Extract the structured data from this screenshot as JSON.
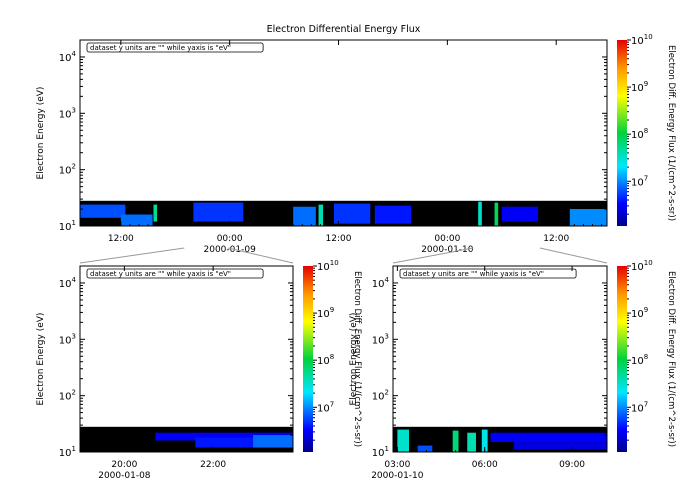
{
  "chart_data": [
    {
      "id": "top",
      "type": "heatmap",
      "title": "Electron Differential Energy Flux",
      "annotation": "dataset y units are \"\" while yaxis is \"eV\"",
      "ylabel": "Electron Energy (eV)",
      "y_scale": "log",
      "ylim": [
        10,
        20000
      ],
      "y_ticks": [
        {
          "value": 10,
          "base": "10",
          "exp": "1"
        },
        {
          "value": 100,
          "base": "10",
          "exp": "2"
        },
        {
          "value": 1000,
          "base": "10",
          "exp": "3"
        },
        {
          "value": 10000,
          "base": "10",
          "exp": "4"
        }
      ],
      "x_unit": "hours since 2000-01-08 00:00",
      "xlim": [
        7.5,
        65.6
      ],
      "x_ticks": [
        {
          "value": 12,
          "label": "12:00",
          "date": ""
        },
        {
          "value": 24,
          "label": "00:00",
          "date": "2000-01-09"
        },
        {
          "value": 36,
          "label": "12:00",
          "date": ""
        },
        {
          "value": 48,
          "label": "00:00",
          "date": "2000-01-10"
        },
        {
          "value": 60,
          "label": "12:00",
          "date": ""
        }
      ],
      "data_band_top_eV": 28,
      "flux_patches": [
        {
          "t": [
            7.5,
            12.5
          ],
          "e": [
            14,
            24
          ],
          "level": 6.8
        },
        {
          "t": [
            12.0,
            15.5
          ],
          "e": [
            10,
            16
          ],
          "level": 6.9
        },
        {
          "t": [
            15.6,
            16.0
          ],
          "e": [
            12,
            24
          ],
          "level": 7.7
        },
        {
          "t": [
            20.0,
            25.5
          ],
          "e": [
            12,
            26
          ],
          "level": 6.7
        },
        {
          "t": [
            31.0,
            33.5
          ],
          "e": [
            10,
            22
          ],
          "level": 6.9
        },
        {
          "t": [
            33.8,
            34.3
          ],
          "e": [
            10,
            24
          ],
          "level": 7.6
        },
        {
          "t": [
            35.5,
            39.5
          ],
          "e": [
            11,
            25
          ],
          "level": 6.7
        },
        {
          "t": [
            40.0,
            44.0
          ],
          "e": [
            11,
            23
          ],
          "level": 6.6
        },
        {
          "t": [
            51.4,
            51.8
          ],
          "e": [
            10,
            27
          ],
          "level": 7.5
        },
        {
          "t": [
            53.2,
            53.6
          ],
          "e": [
            10,
            26
          ],
          "level": 7.9
        },
        {
          "t": [
            54.0,
            58.0
          ],
          "e": [
            12,
            22
          ],
          "level": 6.5
        },
        {
          "t": [
            61.5,
            65.6
          ],
          "e": [
            10,
            20
          ],
          "level": 7.0
        }
      ],
      "colorbar": {
        "label": "Electron Diff. Energy Flux (1/(cm^2-s-sr))",
        "scale": "log",
        "range_log10": [
          6.05,
          10
        ],
        "ticks": [
          {
            "value": 7,
            "base": "10",
            "exp": "7"
          },
          {
            "value": 8,
            "base": "10",
            "exp": "8"
          },
          {
            "value": 9,
            "base": "10",
            "exp": "9"
          },
          {
            "value": 10,
            "base": "10",
            "exp": "10"
          }
        ]
      }
    },
    {
      "id": "bottom-left",
      "type": "heatmap",
      "title": "",
      "annotation": "dataset y units are \"\" while yaxis is \"eV\"",
      "ylabel": "Electron Energy (eV)",
      "y_scale": "log",
      "ylim": [
        10,
        20000
      ],
      "y_ticks": [
        {
          "value": 10,
          "base": "10",
          "exp": "1"
        },
        {
          "value": 100,
          "base": "10",
          "exp": "2"
        },
        {
          "value": 1000,
          "base": "10",
          "exp": "3"
        },
        {
          "value": 10000,
          "base": "10",
          "exp": "4"
        }
      ],
      "x_unit": "hours since 2000-01-08 00:00",
      "xlim": [
        19.0,
        23.8
      ],
      "x_ticks": [
        {
          "value": 20,
          "label": "20:00",
          "date": "2000-01-08"
        },
        {
          "value": 22,
          "label": "22:00",
          "date": ""
        }
      ],
      "data_band_top_eV": 28,
      "flux_patches": [
        {
          "t": [
            20.7,
            23.8
          ],
          "e": [
            16,
            22
          ],
          "level": 6.5
        },
        {
          "t": [
            21.6,
            23.8
          ],
          "e": [
            12,
            18
          ],
          "level": 6.6
        },
        {
          "t": [
            22.9,
            23.8
          ],
          "e": [
            12,
            20
          ],
          "level": 6.9
        }
      ],
      "colorbar": {
        "label": "Electron Diff. Energy Flux (1/(cm^2-s-sr))",
        "scale": "log",
        "range_log10": [
          6.05,
          10
        ],
        "ticks": [
          {
            "value": 7,
            "base": "10",
            "exp": "7"
          },
          {
            "value": 8,
            "base": "10",
            "exp": "8"
          },
          {
            "value": 9,
            "base": "10",
            "exp": "9"
          },
          {
            "value": 10,
            "base": "10",
            "exp": "10"
          }
        ]
      }
    },
    {
      "id": "bottom-right",
      "type": "heatmap",
      "title": "",
      "annotation": "dataset y units are \"\" while yaxis is \"eV\"",
      "ylabel": "Electron Energy (eV)",
      "y_scale": "log",
      "ylim": [
        10,
        20000
      ],
      "y_ticks": [
        {
          "value": 10,
          "base": "10",
          "exp": "1"
        },
        {
          "value": 100,
          "base": "10",
          "exp": "2"
        },
        {
          "value": 1000,
          "base": "10",
          "exp": "3"
        },
        {
          "value": 10000,
          "base": "10",
          "exp": "4"
        }
      ],
      "x_unit": "hours since 2000-01-08 00:00",
      "xlim": [
        50.85,
        58.2
      ],
      "x_ticks": [
        {
          "value": 51,
          "label": "03:00",
          "date": "2000-01-10"
        },
        {
          "value": 54,
          "label": "06:00",
          "date": ""
        },
        {
          "value": 57,
          "label": "09:00",
          "date": ""
        }
      ],
      "data_band_top_eV": 28,
      "flux_patches": [
        {
          "t": [
            51.0,
            51.4
          ],
          "e": [
            10,
            25
          ],
          "level": 7.5
        },
        {
          "t": [
            51.7,
            52.2
          ],
          "e": [
            10,
            13
          ],
          "level": 6.8
        },
        {
          "t": [
            52.9,
            53.1
          ],
          "e": [
            10,
            24
          ],
          "level": 7.8
        },
        {
          "t": [
            53.4,
            53.7
          ],
          "e": [
            10,
            22
          ],
          "level": 7.6
        },
        {
          "t": [
            53.9,
            54.1
          ],
          "e": [
            10,
            25
          ],
          "level": 7.4
        },
        {
          "t": [
            54.2,
            58.2
          ],
          "e": [
            15,
            22
          ],
          "level": 6.5
        },
        {
          "t": [
            55.0,
            58.2
          ],
          "e": [
            11,
            15
          ],
          "level": 6.4
        }
      ],
      "colorbar": {
        "label": "Electron Diff. Energy Flux (1/(cm^2-s-sr))",
        "scale": "log",
        "range_log10": [
          6.05,
          10
        ],
        "ticks": [
          {
            "value": 7,
            "base": "10",
            "exp": "7"
          },
          {
            "value": 8,
            "base": "10",
            "exp": "8"
          },
          {
            "value": 9,
            "base": "10",
            "exp": "9"
          },
          {
            "value": 10,
            "base": "10",
            "exp": "10"
          }
        ]
      }
    }
  ]
}
